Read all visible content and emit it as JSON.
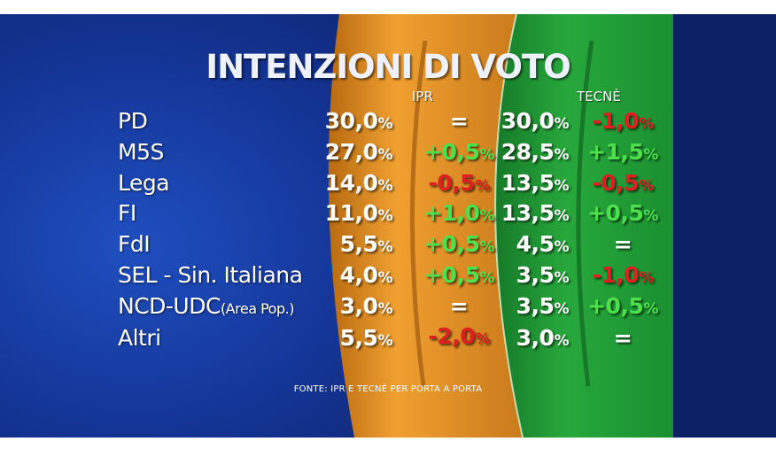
{
  "title": "INTENZIONI DI VOTO",
  "source": "FONTE: IPR E TECNÈ PER PORTA A PORTA",
  "colors": {
    "ipr_band": "#e8901f",
    "tecne_band": "#1f9a34",
    "positive": "#4ce04c",
    "negative": "#e02020",
    "neutral": "#ffffff"
  },
  "chart_data": {
    "type": "table",
    "title": "INTENZIONI DI VOTO",
    "pollsters": [
      {
        "name": "IPR",
        "values": [
          "30,0",
          "27,0",
          "14,0",
          "11,0",
          "5,5",
          "4,0",
          "3,0",
          "5,5"
        ],
        "changes": [
          "=",
          "+0,5",
          "-0,5",
          "+1,0",
          "+0,5",
          "+0,5",
          "=",
          "-2,0"
        ]
      },
      {
        "name": "TECNÈ",
        "values": [
          "30,0",
          "28,5",
          "13,5",
          "13,5",
          "4,5",
          "3,5",
          "3,5",
          "3,0"
        ],
        "changes": [
          "-1,0",
          "+1,5",
          "-0,5",
          "+0,5",
          "=",
          "-1,0",
          "+0,5",
          "="
        ]
      }
    ],
    "parties": [
      {
        "name": "PD",
        "note": ""
      },
      {
        "name": "M5S",
        "note": ""
      },
      {
        "name": "Lega",
        "note": ""
      },
      {
        "name": "FI",
        "note": ""
      },
      {
        "name": "FdI",
        "note": ""
      },
      {
        "name": "SEL - Sin. Italiana",
        "note": ""
      },
      {
        "name": "NCD-UDC",
        "note": "(Area Pop.)"
      },
      {
        "name": "Altri",
        "note": ""
      }
    ]
  }
}
